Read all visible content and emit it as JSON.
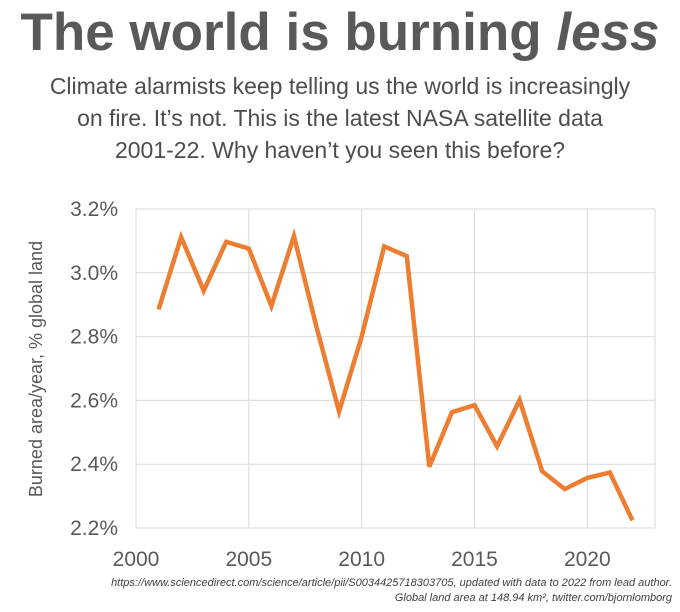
{
  "header": {
    "title_main": "The world is burning ",
    "title_emph": "less",
    "subtitle_lines": [
      "Climate alarmists keep telling us the world is increasingly",
      "on fire. It’s not. This is the latest NASA satellite data",
      "2001-22. Why haven’t you seen this before?"
    ]
  },
  "source": {
    "line1": "https://www.sciencedirect.com/science/article/pii/S0034425718303705, updated with data to 2022 from lead author.",
    "line2": "Global land area at 148.94 km², twitter.com/bjornlomborg"
  },
  "chart_data": {
    "type": "line",
    "x": [
      2001,
      2002,
      2003,
      2004,
      2005,
      2006,
      2007,
      2008,
      2009,
      2010,
      2011,
      2012,
      2013,
      2014,
      2015,
      2016,
      2017,
      2018,
      2019,
      2020,
      2021,
      2022
    ],
    "series": [
      {
        "values": [
          2.885,
          3.112,
          2.944,
          3.097,
          3.076,
          2.896,
          3.115,
          2.83,
          2.565,
          2.8,
          3.083,
          3.052,
          2.392,
          2.563,
          2.585,
          2.456,
          2.601,
          2.378,
          2.322,
          2.357,
          2.374,
          2.224
        ]
      }
    ],
    "title": "",
    "xlabel": "",
    "ylabel": "Burned area/year, % global land",
    "xlim": [
      2000,
      2023
    ],
    "ylim": [
      2.2,
      3.2
    ],
    "xticks": [
      "2000",
      "2005",
      "2010",
      "2015",
      "2020"
    ],
    "yticks": [
      "2.2%",
      "2.4%",
      "2.6%",
      "2.8%",
      "3.0%",
      "3.2%"
    ],
    "grid": true,
    "line_color": "#ed7d31",
    "grid_color": "#d9d9d9"
  }
}
